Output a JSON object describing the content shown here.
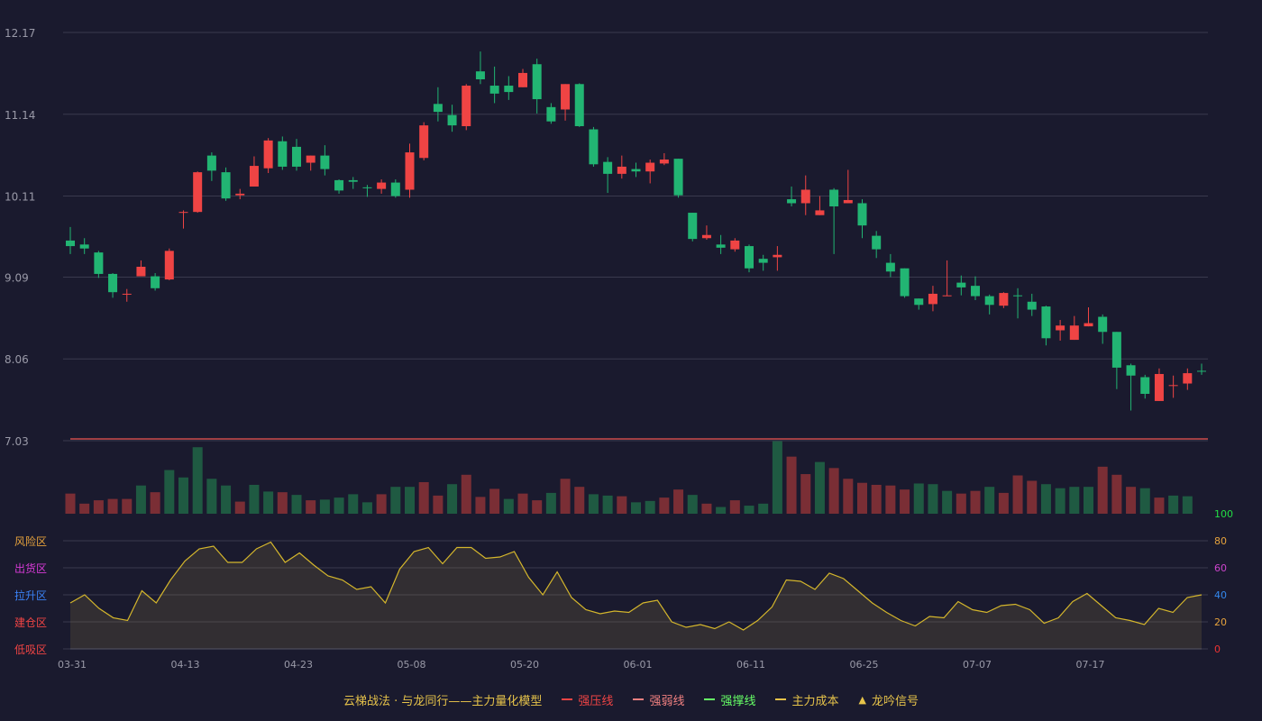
{
  "chart_data": {
    "type": "candlestick",
    "price_axis": {
      "min": 7.03,
      "max": 12.17,
      "ticks": [
        "12.17",
        "11.14",
        "10.11",
        "9.09",
        "8.06",
        "7.03"
      ]
    },
    "indicator_axis": {
      "min": 0,
      "max": 100,
      "ticks": [
        "100",
        "80",
        "60",
        "40",
        "20",
        "0"
      ],
      "tick_colors": [
        "#22dd44",
        "#e6a23c",
        "#cc44cc",
        "#3388ee",
        "#e6a23c",
        "#ee3333"
      ]
    },
    "zone_labels": [
      {
        "text": "风险区",
        "color": "#e6a23c"
      },
      {
        "text": "出货区",
        "color": "#d63ad6"
      },
      {
        "text": "拉升区",
        "color": "#3b82f6"
      },
      {
        "text": "建仓区",
        "color": "#ef4444"
      },
      {
        "text": "低吸区",
        "color": "#ef4444"
      }
    ],
    "x_labels": [
      {
        "index": 0,
        "text": "03-31"
      },
      {
        "index": 8,
        "text": "04-13"
      },
      {
        "index": 16,
        "text": "04-23"
      },
      {
        "index": 24,
        "text": "05-08"
      },
      {
        "index": 32,
        "text": "05-20"
      },
      {
        "index": 40,
        "text": "06-01"
      },
      {
        "index": 48,
        "text": "06-11"
      },
      {
        "index": 56,
        "text": "06-25"
      },
      {
        "index": 64,
        "text": "07-07"
      },
      {
        "index": 72,
        "text": "07-17"
      }
    ],
    "candles": [
      [
        9.55,
        9.48,
        9.72,
        9.38
      ],
      [
        9.5,
        9.45,
        9.58,
        9.38
      ],
      [
        9.4,
        9.13,
        9.42,
        9.08
      ],
      [
        9.13,
        8.9,
        9.14,
        8.83
      ],
      [
        8.88,
        8.88,
        8.94,
        8.78
      ],
      [
        9.1,
        9.22,
        9.3,
        9.12
      ],
      [
        9.1,
        8.95,
        9.14,
        8.92
      ],
      [
        9.06,
        9.42,
        9.45,
        9.05
      ],
      [
        9.91,
        9.91,
        9.93,
        9.7
      ],
      [
        9.91,
        10.41,
        10.42,
        9.9
      ],
      [
        10.62,
        10.43,
        10.66,
        10.3
      ],
      [
        10.41,
        10.08,
        10.47,
        10.05
      ],
      [
        10.12,
        10.14,
        10.2,
        10.07
      ],
      [
        10.23,
        10.49,
        10.61,
        10.23
      ],
      [
        10.46,
        10.81,
        10.84,
        10.4
      ],
      [
        10.8,
        10.48,
        10.86,
        10.44
      ],
      [
        10.73,
        10.48,
        10.83,
        10.43
      ],
      [
        10.53,
        10.62,
        10.62,
        10.43
      ],
      [
        10.62,
        10.45,
        10.75,
        10.37
      ],
      [
        10.31,
        10.18,
        10.32,
        10.14
      ],
      [
        10.31,
        10.29,
        10.35,
        10.2
      ],
      [
        10.22,
        10.21,
        10.25,
        10.1
      ],
      [
        10.2,
        10.28,
        10.32,
        10.14
      ],
      [
        10.28,
        10.11,
        10.32,
        10.09
      ],
      [
        10.19,
        10.66,
        10.77,
        10.09
      ],
      [
        10.59,
        11.0,
        11.04,
        10.56
      ],
      [
        11.27,
        11.17,
        11.48,
        11.05
      ],
      [
        11.13,
        11.0,
        11.26,
        10.92
      ],
      [
        10.99,
        11.5,
        11.52,
        10.94
      ],
      [
        11.68,
        11.58,
        11.93,
        11.52
      ],
      [
        11.5,
        11.4,
        11.74,
        11.28
      ],
      [
        11.5,
        11.42,
        11.62,
        11.32
      ],
      [
        11.48,
        11.66,
        11.71,
        11.48
      ],
      [
        11.77,
        11.33,
        11.84,
        11.15
      ],
      [
        11.23,
        11.05,
        11.28,
        11.02
      ],
      [
        11.2,
        11.52,
        11.52,
        11.06
      ],
      [
        11.52,
        10.99,
        11.53,
        10.98
      ],
      [
        10.95,
        10.51,
        10.98,
        10.48
      ],
      [
        10.54,
        10.39,
        10.6,
        10.15
      ],
      [
        10.39,
        10.48,
        10.62,
        10.33
      ],
      [
        10.45,
        10.42,
        10.53,
        10.35
      ],
      [
        10.42,
        10.53,
        10.57,
        10.27
      ],
      [
        10.52,
        10.57,
        10.65,
        10.5
      ],
      [
        10.58,
        10.12,
        10.58,
        10.09
      ],
      [
        9.9,
        9.57,
        9.9,
        9.54
      ],
      [
        9.58,
        9.62,
        9.74,
        9.56
      ],
      [
        9.5,
        9.46,
        9.62,
        9.38
      ],
      [
        9.44,
        9.55,
        9.58,
        9.41
      ],
      [
        9.48,
        9.2,
        9.5,
        9.15
      ],
      [
        9.32,
        9.27,
        9.37,
        9.17
      ],
      [
        9.34,
        9.37,
        9.48,
        9.17
      ],
      [
        10.07,
        10.02,
        10.23,
        9.98
      ],
      [
        10.02,
        10.19,
        10.37,
        9.87
      ],
      [
        9.87,
        9.93,
        10.11,
        9.87
      ],
      [
        10.19,
        9.98,
        10.21,
        9.38
      ],
      [
        10.02,
        10.06,
        10.44,
        10.02
      ],
      [
        10.02,
        9.74,
        10.07,
        9.58
      ],
      [
        9.61,
        9.44,
        9.67,
        9.33
      ],
      [
        9.27,
        9.16,
        9.38,
        9.09
      ],
      [
        9.2,
        8.85,
        9.2,
        8.83
      ],
      [
        8.82,
        8.74,
        8.82,
        8.68
      ],
      [
        8.75,
        8.88,
        8.98,
        8.66
      ],
      [
        8.86,
        8.86,
        9.3,
        8.85
      ],
      [
        9.02,
        8.96,
        9.11,
        8.86
      ],
      [
        8.98,
        8.85,
        9.1,
        8.8
      ],
      [
        8.85,
        8.74,
        8.87,
        8.62
      ],
      [
        8.73,
        8.89,
        8.9,
        8.7
      ],
      [
        8.86,
        8.85,
        8.95,
        8.57
      ],
      [
        8.78,
        8.68,
        8.88,
        8.6
      ],
      [
        8.72,
        8.32,
        8.73,
        8.23
      ],
      [
        8.42,
        8.48,
        8.55,
        8.29
      ],
      [
        8.3,
        8.48,
        8.6,
        8.3
      ],
      [
        8.47,
        8.51,
        8.71,
        8.47
      ],
      [
        8.59,
        8.4,
        8.62,
        8.25
      ],
      [
        8.4,
        7.95,
        8.4,
        7.68
      ],
      [
        7.98,
        7.85,
        8.0,
        7.41
      ],
      [
        7.83,
        7.62,
        7.86,
        7.56
      ],
      [
        7.53,
        7.87,
        7.94,
        7.53
      ],
      [
        7.72,
        7.73,
        7.85,
        7.57
      ],
      [
        7.75,
        7.88,
        7.94,
        7.67
      ],
      [
        7.91,
        7.9,
        8.0,
        7.86
      ]
    ],
    "volume_bars": [
      [
        0.3,
        1
      ],
      [
        0.15,
        1
      ],
      [
        0.2,
        1
      ],
      [
        0.22,
        1
      ],
      [
        0.22,
        1
      ],
      [
        0.42,
        0
      ],
      [
        0.32,
        1
      ],
      [
        0.65,
        0
      ],
      [
        0.54,
        0
      ],
      [
        0.99,
        0
      ],
      [
        0.52,
        0
      ],
      [
        0.42,
        0
      ],
      [
        0.18,
        1
      ],
      [
        0.43,
        0
      ],
      [
        0.33,
        0
      ],
      [
        0.32,
        1
      ],
      [
        0.28,
        0
      ],
      [
        0.2,
        1
      ],
      [
        0.21,
        0
      ],
      [
        0.24,
        0
      ],
      [
        0.29,
        0
      ],
      [
        0.17,
        0
      ],
      [
        0.29,
        1
      ],
      [
        0.4,
        0
      ],
      [
        0.4,
        0
      ],
      [
        0.47,
        1
      ],
      [
        0.27,
        1
      ],
      [
        0.44,
        0
      ],
      [
        0.58,
        1
      ],
      [
        0.25,
        1
      ],
      [
        0.37,
        1
      ],
      [
        0.22,
        0
      ],
      [
        0.3,
        1
      ],
      [
        0.2,
        1
      ],
      [
        0.31,
        0
      ],
      [
        0.52,
        1
      ],
      [
        0.4,
        1
      ],
      [
        0.29,
        0
      ],
      [
        0.27,
        0
      ],
      [
        0.26,
        1
      ],
      [
        0.17,
        0
      ],
      [
        0.19,
        0
      ],
      [
        0.24,
        1
      ],
      [
        0.36,
        1
      ],
      [
        0.28,
        0
      ],
      [
        0.15,
        1
      ],
      [
        0.1,
        0
      ],
      [
        0.2,
        1
      ],
      [
        0.12,
        0
      ],
      [
        0.15,
        0
      ],
      [
        1.08,
        0
      ],
      [
        0.85,
        1
      ],
      [
        0.59,
        1
      ],
      [
        0.77,
        0
      ],
      [
        0.68,
        1
      ],
      [
        0.52,
        1
      ],
      [
        0.46,
        1
      ],
      [
        0.43,
        1
      ],
      [
        0.42,
        1
      ],
      [
        0.36,
        1
      ],
      [
        0.45,
        0
      ],
      [
        0.44,
        0
      ],
      [
        0.34,
        0
      ],
      [
        0.3,
        1
      ],
      [
        0.34,
        1
      ],
      [
        0.4,
        0
      ],
      [
        0.31,
        1
      ],
      [
        0.57,
        1
      ],
      [
        0.49,
        1
      ],
      [
        0.44,
        0
      ],
      [
        0.38,
        0
      ],
      [
        0.4,
        0
      ],
      [
        0.4,
        0
      ],
      [
        0.7,
        1
      ],
      [
        0.58,
        1
      ],
      [
        0.4,
        1
      ],
      [
        0.38,
        0
      ],
      [
        0.24,
        1
      ],
      [
        0.27,
        0
      ],
      [
        0.26,
        0
      ]
    ],
    "volume_colors": {
      "up": "#7a2e35",
      "down": "#1f5a42"
    },
    "resistance_line": {
      "value": 7.03,
      "color": "#ef5350"
    },
    "indicator_line": [
      34,
      40,
      30,
      23,
      21,
      43,
      34,
      51,
      65,
      74,
      76,
      64,
      64,
      74,
      79,
      64,
      71,
      62,
      54,
      51,
      44,
      46,
      34,
      59,
      72,
      75,
      63,
      75,
      75,
      67,
      68,
      72,
      53,
      40,
      57,
      38,
      29,
      26,
      28,
      27,
      34,
      36,
      20,
      16,
      18,
      15,
      20,
      14,
      21,
      31,
      51,
      50,
      44,
      56,
      52,
      43,
      34,
      27,
      21,
      17,
      24,
      23,
      35,
      29,
      27,
      32,
      33,
      29,
      19,
      23,
      35,
      41,
      32,
      23,
      21,
      18,
      30,
      27,
      38,
      40
    ],
    "legend": [
      {
        "text": "云梯战法 · 与龙同行——主力量化模型",
        "color": "#e6c34a",
        "kind": "text"
      },
      {
        "text": "强压线",
        "color": "#ef4444",
        "kind": "solid"
      },
      {
        "text": "强弱线",
        "color": "#f08080",
        "kind": "dashed"
      },
      {
        "text": "强撑线",
        "color": "#66ff66",
        "kind": "solid"
      },
      {
        "text": "主力成本",
        "color": "#e6c34a",
        "kind": "dashed"
      },
      {
        "text": "龙吟信号",
        "color": "#e6c34a",
        "kind": "triangle"
      }
    ],
    "colors": {
      "up": "#ef4444",
      "down": "#22b573",
      "indicator": "#d4b62c",
      "grid": "#3a3a4e",
      "axis_text": "#9a9aa8"
    }
  }
}
